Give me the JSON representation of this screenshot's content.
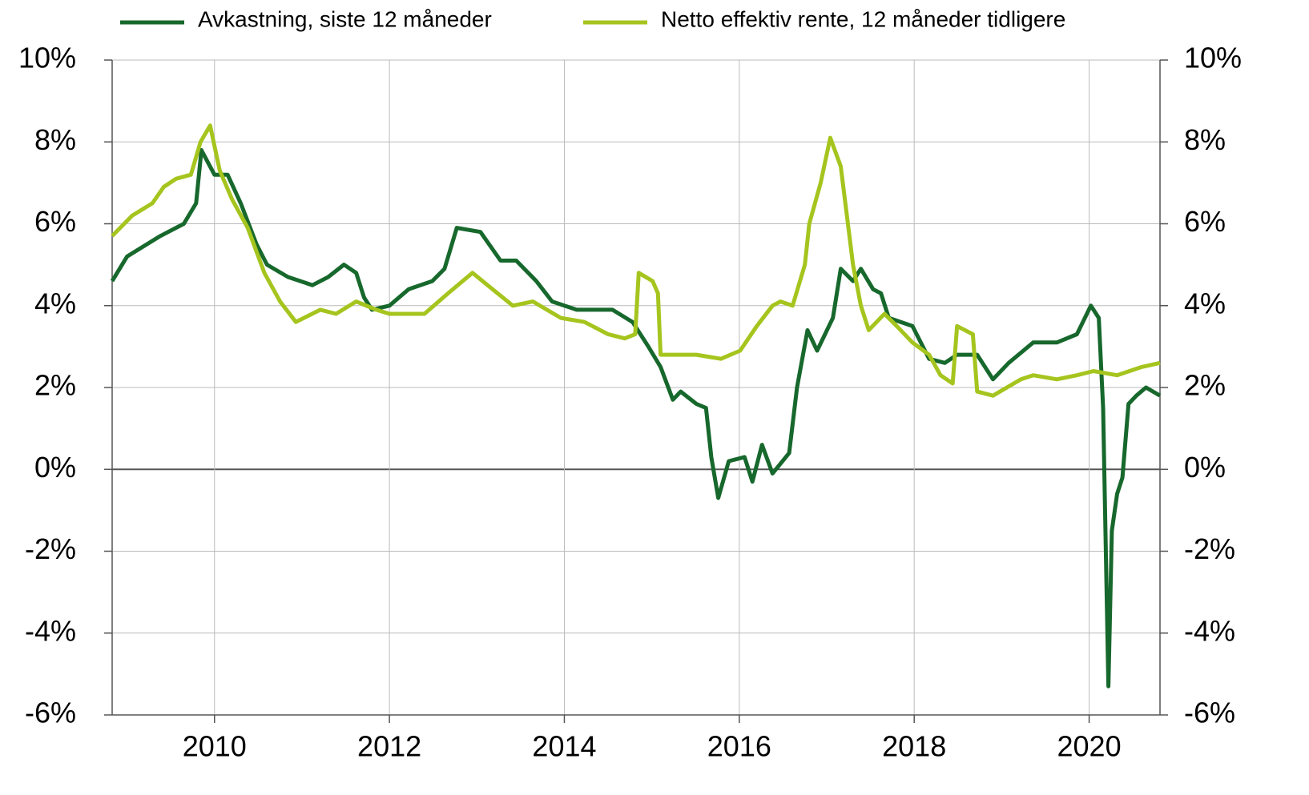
{
  "chart_data": {
    "type": "line",
    "grid": true,
    "xlim": [
      2008.83,
      2020.81
    ],
    "xticks": [
      2010,
      2012,
      2014,
      2016,
      2018,
      2020
    ],
    "ylim": [
      -6,
      10
    ],
    "yticks": [
      {
        "value": -6,
        "label": "-6%"
      },
      {
        "value": -4,
        "label": "-4%"
      },
      {
        "value": -2,
        "label": "-2%"
      },
      {
        "value": 0,
        "label": "0%"
      },
      {
        "value": 2,
        "label": "2%"
      },
      {
        "value": 4,
        "label": "4%"
      },
      {
        "value": 6,
        "label": "6%"
      },
      {
        "value": 8,
        "label": "8%"
      },
      {
        "value": 10,
        "label": "10%"
      }
    ],
    "y2lim": [
      -6,
      10
    ],
    "y2ticks": [
      {
        "value": -6,
        "label": "-6%"
      },
      {
        "value": -4,
        "label": "-4%"
      },
      {
        "value": -2,
        "label": "-2%"
      },
      {
        "value": 0,
        "label": "0%"
      },
      {
        "value": 2,
        "label": "2%"
      },
      {
        "value": 4,
        "label": "4%"
      },
      {
        "value": 6,
        "label": "6%"
      },
      {
        "value": 8,
        "label": "8%"
      },
      {
        "value": 10,
        "label": "10%"
      }
    ],
    "series": [
      {
        "name": "Avkastning, siste 12 måneder",
        "color": "#17682c",
        "x": [
          2008.83,
          2009.0,
          2009.38,
          2009.65,
          2009.79,
          2009.85,
          2010.0,
          2010.15,
          2010.3,
          2010.48,
          2010.6,
          2010.84,
          2011.12,
          2011.3,
          2011.48,
          2011.62,
          2011.71,
          2011.8,
          2012.0,
          2012.22,
          2012.49,
          2012.63,
          2012.77,
          2013.04,
          2013.27,
          2013.45,
          2013.68,
          2013.86,
          2014.14,
          2014.55,
          2014.78,
          2014.96,
          2015.1,
          2015.24,
          2015.33,
          2015.51,
          2015.62,
          2015.68,
          2015.76,
          2015.88,
          2016.06,
          2016.15,
          2016.26,
          2016.38,
          2016.57,
          2016.66,
          2016.78,
          2016.89,
          2017.07,
          2017.16,
          2017.3,
          2017.39,
          2017.53,
          2017.62,
          2017.71,
          2017.98,
          2018.17,
          2018.35,
          2018.49,
          2018.72,
          2018.9,
          2019.08,
          2019.36,
          2019.63,
          2019.86,
          2020.02,
          2020.11,
          2020.16,
          2020.22,
          2020.26,
          2020.32,
          2020.38,
          2020.45,
          2020.54,
          2020.65,
          2020.81
        ],
        "values": [
          4.6,
          5.2,
          5.7,
          6.0,
          6.5,
          7.8,
          7.2,
          7.2,
          6.5,
          5.5,
          5.0,
          4.7,
          4.5,
          4.7,
          5.0,
          4.8,
          4.2,
          3.9,
          4.0,
          4.4,
          4.6,
          4.9,
          5.9,
          5.8,
          5.1,
          5.1,
          4.6,
          4.1,
          3.9,
          3.9,
          3.6,
          3.0,
          2.5,
          1.7,
          1.9,
          1.6,
          1.5,
          0.3,
          -0.7,
          0.2,
          0.3,
          -0.3,
          0.6,
          -0.1,
          0.4,
          2.0,
          3.4,
          2.9,
          3.7,
          4.9,
          4.6,
          4.9,
          4.4,
          4.3,
          3.7,
          3.5,
          2.7,
          2.6,
          2.8,
          2.8,
          2.2,
          2.6,
          3.1,
          3.1,
          3.3,
          4.0,
          3.7,
          1.5,
          -5.3,
          -1.5,
          -0.6,
          -0.2,
          1.6,
          1.8,
          2.0,
          1.8
        ]
      },
      {
        "name": "Netto effektiv rente, 12 måneder tidligere",
        "color": "#a5c51e",
        "x": [
          2008.83,
          2009.06,
          2009.29,
          2009.42,
          2009.56,
          2009.73,
          2009.84,
          2009.95,
          2010.06,
          2010.2,
          2010.38,
          2010.57,
          2010.75,
          2010.93,
          2011.21,
          2011.39,
          2011.62,
          2011.85,
          2012.0,
          2012.4,
          2012.67,
          2012.95,
          2013.18,
          2013.41,
          2013.64,
          2013.96,
          2014.23,
          2014.5,
          2014.69,
          2014.81,
          2014.85,
          2015.01,
          2015.07,
          2015.1,
          2015.51,
          2015.79,
          2016.01,
          2016.2,
          2016.38,
          2016.47,
          2016.61,
          2016.75,
          2016.8,
          2016.93,
          2017.04,
          2017.16,
          2017.3,
          2017.39,
          2017.48,
          2017.66,
          2017.8,
          2017.98,
          2018.17,
          2018.3,
          2018.44,
          2018.49,
          2018.67,
          2018.72,
          2018.9,
          2019.22,
          2019.36,
          2019.63,
          2019.86,
          2020.05,
          2020.32,
          2020.6,
          2020.81
        ],
        "values": [
          5.7,
          6.2,
          6.5,
          6.9,
          7.1,
          7.2,
          8.0,
          8.4,
          7.3,
          6.6,
          5.9,
          4.8,
          4.1,
          3.6,
          3.9,
          3.8,
          4.1,
          3.9,
          3.8,
          3.8,
          4.3,
          4.8,
          4.4,
          4.0,
          4.1,
          3.7,
          3.6,
          3.3,
          3.2,
          3.3,
          4.8,
          4.6,
          4.3,
          2.8,
          2.8,
          2.7,
          2.9,
          3.5,
          4.0,
          4.1,
          4.0,
          5.0,
          6.0,
          7.0,
          8.1,
          7.4,
          5.0,
          4.0,
          3.4,
          3.8,
          3.5,
          3.1,
          2.8,
          2.3,
          2.1,
          3.5,
          3.3,
          1.9,
          1.8,
          2.2,
          2.3,
          2.2,
          2.3,
          2.4,
          2.3,
          2.5,
          2.6
        ]
      }
    ]
  }
}
